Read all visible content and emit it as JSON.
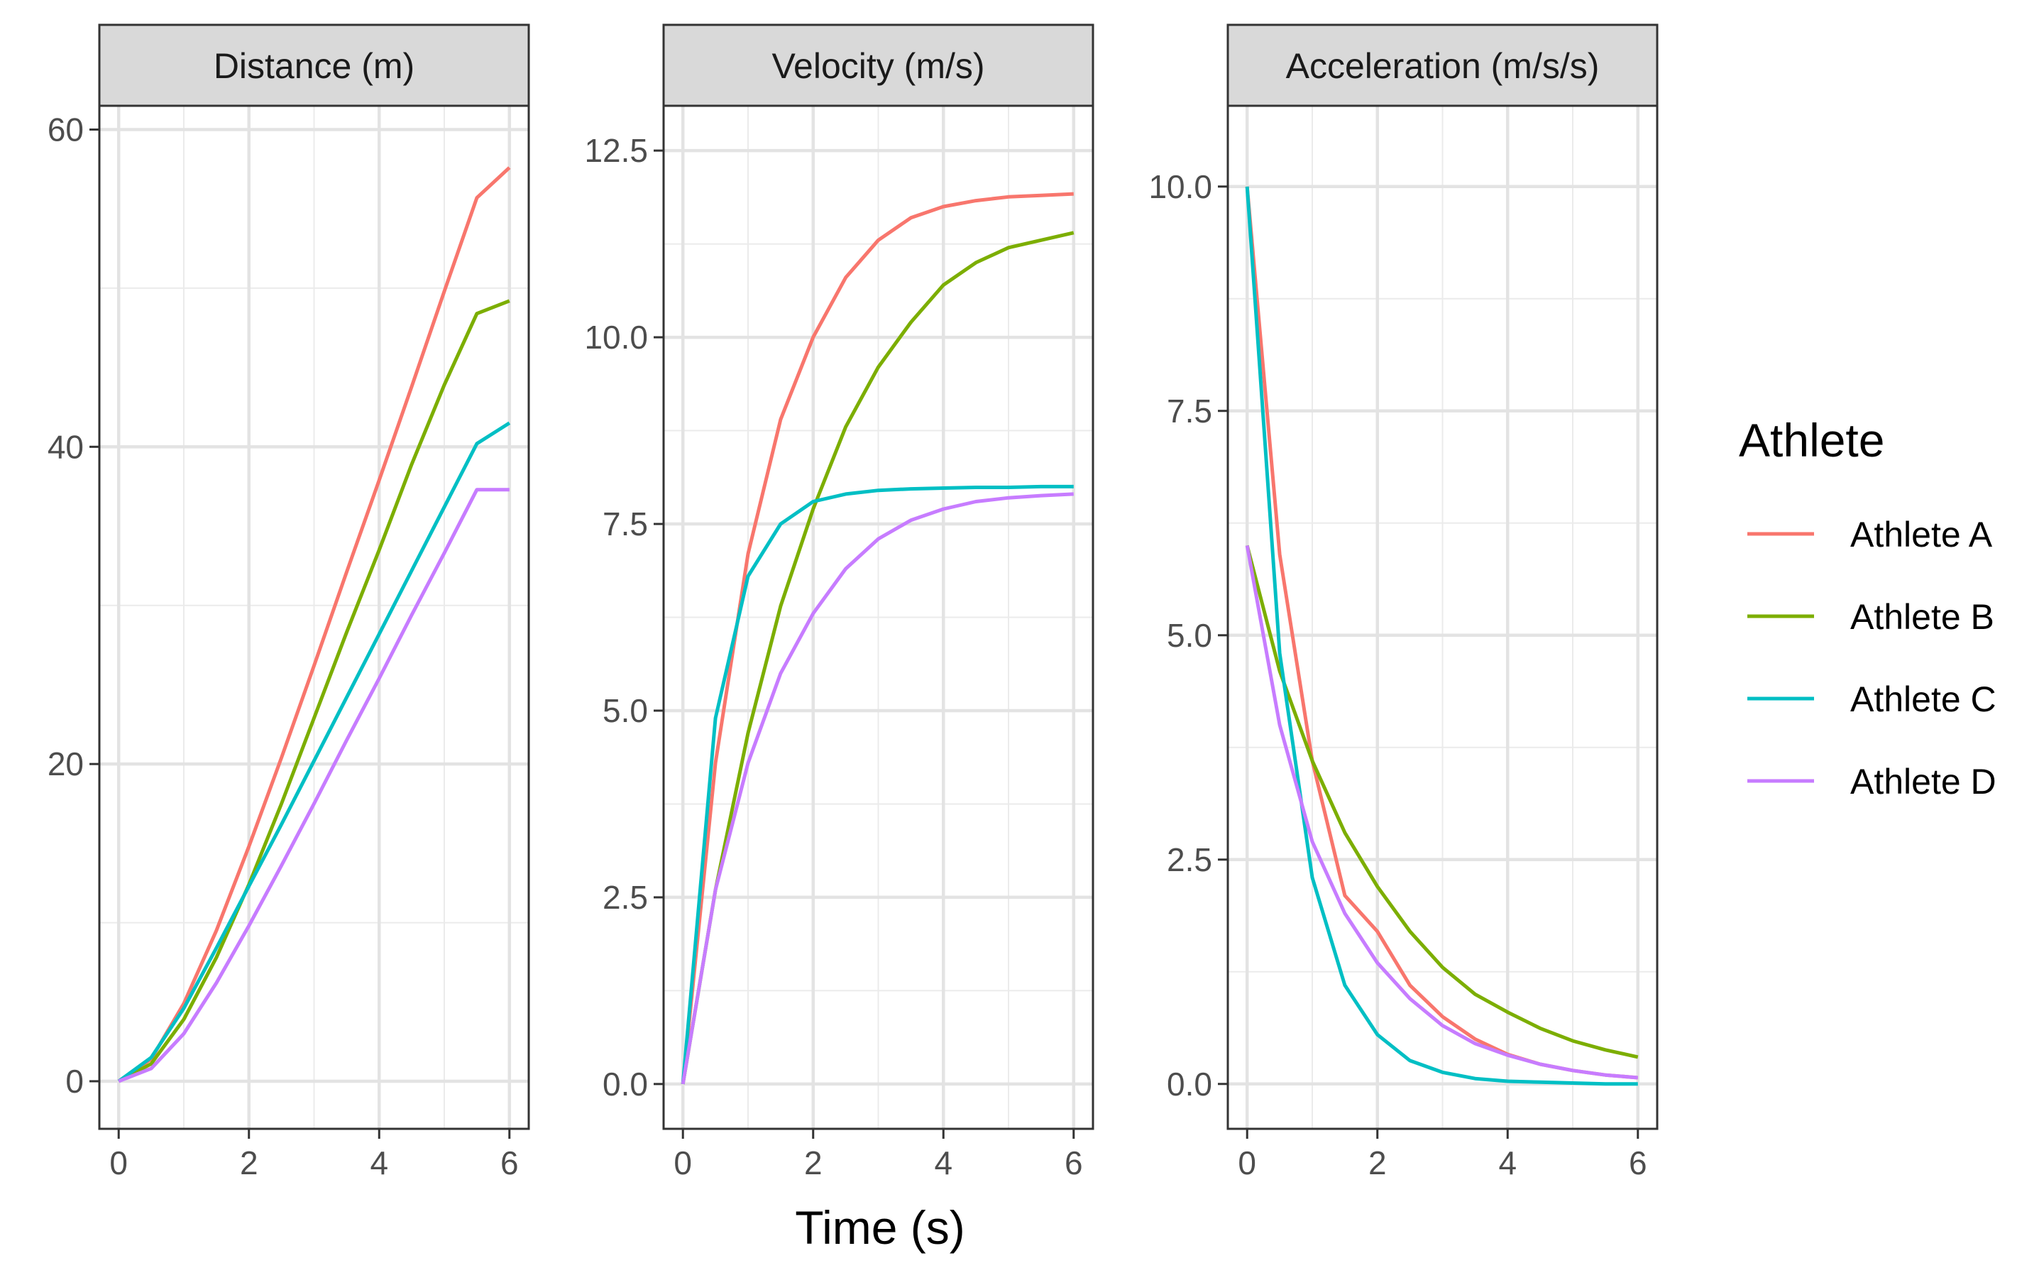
{
  "chart_data": {
    "type": "line",
    "xlabel": "Time (s)",
    "x_range": [
      0,
      6
    ],
    "x_ticks": [
      0,
      2,
      4,
      6
    ],
    "grid": true,
    "legend_title": "Athlete",
    "legend_position": "right",
    "series_names": [
      "Athlete A",
      "Athlete B",
      "Athlete C",
      "Athlete D"
    ],
    "colors": {
      "Athlete A": "#F8766D",
      "Athlete B": "#7CAE00",
      "Athlete C": "#00BFC4",
      "Athlete D": "#C77CFF"
    },
    "panels": [
      {
        "title": "Distance (m)",
        "ylim": [
          -3,
          61.5
        ],
        "y_ticks": [
          0,
          20,
          40,
          60
        ],
        "x": [
          0,
          0.5,
          1,
          1.5,
          2,
          2.5,
          3,
          3.5,
          4,
          4.5,
          5,
          5.5,
          6
        ],
        "series": [
          {
            "name": "Athlete A",
            "values": [
              0,
              1.4,
              4.9,
              9.5,
              14.8,
              20.4,
              26.2,
              32.1,
              37.9,
              43.8,
              49.8,
              55.7,
              57.6
            ]
          },
          {
            "name": "Athlete B",
            "values": [
              0,
              1.1,
              3.9,
              7.8,
              12.4,
              17.5,
              22.9,
              28.3,
              33.5,
              38.9,
              43.9,
              48.4,
              49.2
            ]
          },
          {
            "name": "Athlete C",
            "values": [
              0,
              1.5,
              4.6,
              8.4,
              12.3,
              16.2,
              20.2,
              24.2,
              28.2,
              32.2,
              36.2,
              40.2,
              41.5
            ]
          },
          {
            "name": "Athlete D",
            "values": [
              0,
              0.8,
              3.0,
              6.2,
              9.8,
              13.6,
              17.5,
              21.5,
              25.4,
              29.4,
              33.3,
              37.3,
              37.3
            ]
          }
        ]
      },
      {
        "title": "Velocity (m/s)",
        "ylim": [
          -0.6,
          13.1
        ],
        "y_ticks": [
          0.0,
          2.5,
          5.0,
          7.5,
          10.0,
          12.5
        ],
        "x": [
          0,
          0.5,
          1,
          1.5,
          2,
          2.5,
          3,
          3.5,
          4,
          4.5,
          5,
          5.5,
          6
        ],
        "series": [
          {
            "name": "Athlete A",
            "values": [
              0,
              4.3,
              7.1,
              8.9,
              10.0,
              10.8,
              11.3,
              11.6,
              11.75,
              11.83,
              11.88,
              11.9,
              11.92
            ]
          },
          {
            "name": "Athlete B",
            "values": [
              0,
              2.6,
              4.7,
              6.4,
              7.7,
              8.8,
              9.6,
              10.2,
              10.7,
              11.0,
              11.2,
              11.3,
              11.4
            ]
          },
          {
            "name": "Athlete C",
            "values": [
              0,
              4.9,
              6.8,
              7.5,
              7.8,
              7.9,
              7.95,
              7.97,
              7.98,
              7.99,
              7.99,
              8.0,
              8.0
            ]
          },
          {
            "name": "Athlete D",
            "values": [
              0,
              2.6,
              4.3,
              5.5,
              6.3,
              6.9,
              7.3,
              7.55,
              7.7,
              7.8,
              7.85,
              7.88,
              7.9
            ]
          }
        ]
      },
      {
        "title": "Acceleration (m/s/s)",
        "ylim": [
          -0.5,
          10.9
        ],
        "y_ticks": [
          0.0,
          2.5,
          5.0,
          7.5,
          10.0
        ],
        "x": [
          0,
          0.5,
          1,
          1.5,
          2,
          2.5,
          3,
          3.5,
          4,
          4.5,
          5,
          5.5,
          6
        ],
        "series": [
          {
            "name": "Athlete A",
            "values": [
              10.0,
              5.9,
              3.6,
              2.1,
              1.7,
              1.1,
              0.75,
              0.5,
              0.33,
              0.22,
              0.15,
              0.1,
              0.07
            ]
          },
          {
            "name": "Athlete B",
            "values": [
              6.0,
              4.6,
              3.6,
              2.8,
              2.2,
              1.7,
              1.3,
              1.0,
              0.8,
              0.62,
              0.48,
              0.38,
              0.3
            ]
          },
          {
            "name": "Athlete C",
            "values": [
              10.0,
              4.8,
              2.3,
              1.1,
              0.55,
              0.26,
              0.13,
              0.06,
              0.03,
              0.02,
              0.01,
              0.0,
              0.0
            ]
          },
          {
            "name": "Athlete D",
            "values": [
              6.0,
              4.0,
              2.7,
              1.9,
              1.35,
              0.95,
              0.65,
              0.45,
              0.32,
              0.22,
              0.15,
              0.1,
              0.07
            ]
          }
        ]
      }
    ]
  }
}
